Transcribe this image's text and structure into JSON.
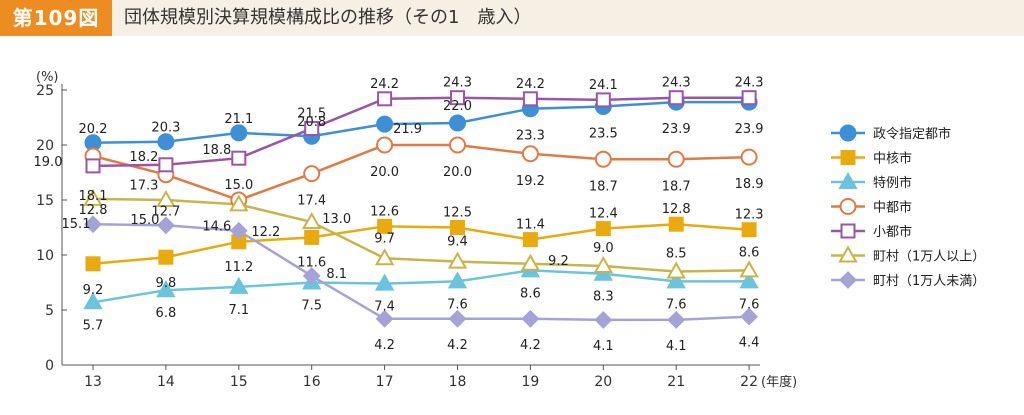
{
  "header": {
    "figure_number": "第109図",
    "title": "団体規模別決算規模構成比の推移（その1　歳入）"
  },
  "chart_data": {
    "type": "line",
    "y_unit": "(%)",
    "x_unit": "(年度)",
    "x": [
      "13",
      "14",
      "15",
      "16",
      "17",
      "18",
      "19",
      "20",
      "21",
      "22"
    ],
    "ylim": [
      0,
      25
    ],
    "yticks": [
      "0",
      "5",
      "10",
      "15",
      "20",
      "25"
    ],
    "grid": false,
    "legend_position": "right",
    "series": [
      {
        "name": "政令指定都市",
        "color": "#3e8fd6",
        "marker": "circle",
        "fill": "#3e8fd6",
        "values": [
          20.2,
          20.3,
          21.1,
          20.8,
          21.9,
          22.0,
          23.3,
          23.5,
          23.9,
          23.9
        ],
        "labels": [
          "20.2",
          "20.3",
          "21.1",
          "20.8",
          "21.9",
          "22.0",
          "23.3",
          "23.5",
          "23.9",
          "23.9"
        ]
      },
      {
        "name": "中核市",
        "color": "#e8aa0f",
        "marker": "square",
        "fill": "#e8aa0f",
        "values": [
          9.2,
          9.8,
          11.2,
          11.6,
          12.6,
          12.5,
          11.4,
          12.4,
          12.8,
          12.3
        ],
        "labels": [
          "9.2",
          "9.8",
          "11.2",
          "11.6",
          "12.6",
          "12.5",
          "11.4",
          "12.4",
          "12.8",
          "12.3"
        ]
      },
      {
        "name": "特例市",
        "color": "#6cc3dc",
        "marker": "triangle",
        "fill": "#6cc3dc",
        "values": [
          5.7,
          6.8,
          7.1,
          7.5,
          7.4,
          7.6,
          8.6,
          8.3,
          7.6,
          7.6
        ],
        "labels": [
          "5.7",
          "6.8",
          "7.1",
          "7.5",
          "7.4",
          "7.6",
          "8.6",
          "8.3",
          "7.6",
          "7.6"
        ]
      },
      {
        "name": "中都市",
        "color": "#e07b45",
        "marker": "circle",
        "fill": "#ffffff",
        "values": [
          19.0,
          17.3,
          15.0,
          17.4,
          20.0,
          20.0,
          19.2,
          18.7,
          18.7,
          18.9
        ],
        "labels": [
          "19.0",
          "17.3",
          "15.0",
          "17.4",
          "20.0",
          "20.0",
          "19.2",
          "18.7",
          "18.7",
          "18.9"
        ]
      },
      {
        "name": "小都市",
        "color": "#9b55a6",
        "marker": "square",
        "fill": "#ffffff",
        "values": [
          18.1,
          18.2,
          18.8,
          21.5,
          24.2,
          24.3,
          24.2,
          24.1,
          24.3,
          24.3
        ],
        "labels": [
          "18.1",
          "18.2",
          "18.8",
          "21.5",
          "24.2",
          "24.3",
          "24.2",
          "24.1",
          "24.3",
          "24.3"
        ]
      },
      {
        "name": "町村（1万人以上）",
        "color": "#c8b44a",
        "marker": "triangle",
        "fill": "#ffffff",
        "values": [
          15.1,
          15.0,
          14.6,
          13.0,
          9.7,
          9.4,
          9.2,
          9.0,
          8.5,
          8.6
        ],
        "labels": [
          "15.1",
          "15.0",
          "14.6",
          "13.0",
          "9.7",
          "9.4",
          "9.2",
          "9.0",
          "8.5",
          "8.6"
        ]
      },
      {
        "name": "町村（1万人未満）",
        "color": "#a5a2d8",
        "marker": "diamond",
        "fill": "#a5a2d8",
        "values": [
          12.8,
          12.7,
          12.2,
          8.1,
          4.2,
          4.2,
          4.2,
          4.1,
          4.1,
          4.4
        ],
        "labels": [
          "12.8",
          "12.7",
          "12.2",
          "8.1",
          "4.2",
          "4.2",
          "4.2",
          "4.1",
          "4.1",
          "4.4"
        ]
      }
    ]
  }
}
